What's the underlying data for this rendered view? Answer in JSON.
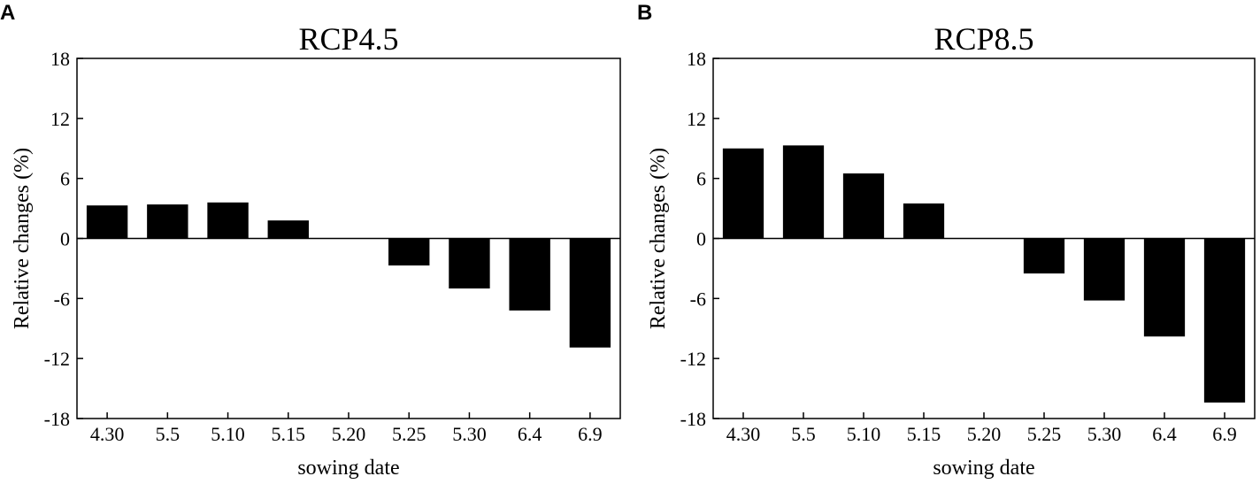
{
  "chart_data": [
    {
      "type": "bar",
      "panel": "A",
      "title": "RCP4.5",
      "xlabel": "sowing date",
      "ylabel": "Relative changes (%)",
      "ylim": [
        -18,
        18
      ],
      "yticks": [
        "18",
        "12",
        "6",
        "0",
        "-6",
        "-12",
        "-18"
      ],
      "categories": [
        "4.30",
        "5.5",
        "5.10",
        "5.15",
        "5.20",
        "5.25",
        "5.30",
        "6.4",
        "6.9"
      ],
      "values": [
        3.3,
        3.4,
        3.6,
        1.8,
        0,
        -2.7,
        -5.0,
        -7.2,
        -10.9
      ],
      "grid": false,
      "color": "#000000"
    },
    {
      "type": "bar",
      "panel": "B",
      "title": "RCP8.5",
      "xlabel": "sowing date",
      "ylabel": "Relative changes (%)",
      "ylim": [
        -18,
        18
      ],
      "yticks": [
        "18",
        "12",
        "6",
        "0",
        "-6",
        "-12",
        "-18"
      ],
      "categories": [
        "4.30",
        "5.5",
        "5.10",
        "5.15",
        "5.20",
        "5.25",
        "5.30",
        "6.4",
        "6.9"
      ],
      "values": [
        9.0,
        9.3,
        6.5,
        3.5,
        0,
        -3.5,
        -6.2,
        -9.8,
        -16.4
      ],
      "grid": false,
      "color": "#000000"
    }
  ]
}
